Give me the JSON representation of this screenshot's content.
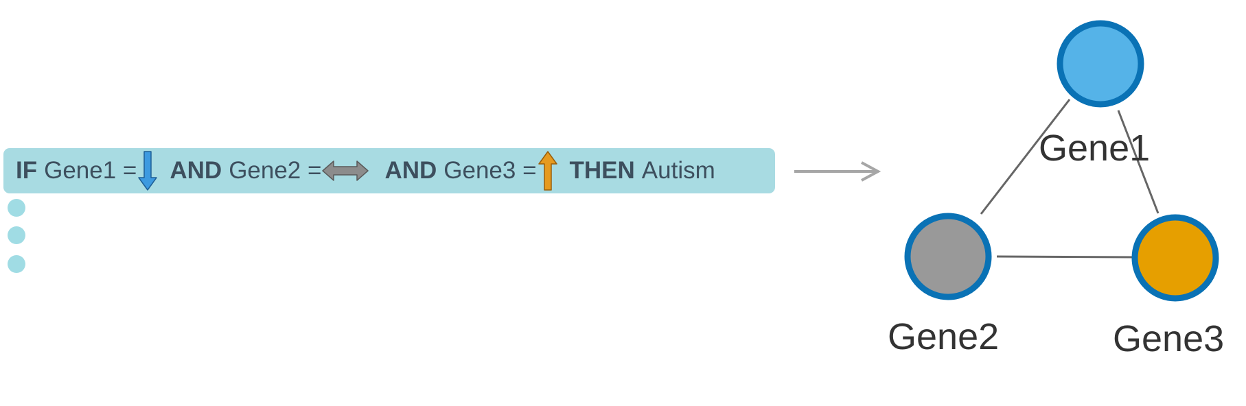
{
  "rule": {
    "if": "IF",
    "gene1": "Gene1 =",
    "and1": "AND",
    "gene2": "Gene2 =",
    "and2": "AND",
    "gene3": "Gene3 =",
    "then": "THEN",
    "outcome": "Autism"
  },
  "icons": {
    "gene1_arrow": "down-arrow-icon",
    "gene2_arrow": "left-right-arrow-icon",
    "gene3_arrow": "up-arrow-icon",
    "flow": "right-arrow-icon"
  },
  "network": {
    "nodes": [
      {
        "id": "gene1",
        "label": "Gene1",
        "fill": "#55b3e8"
      },
      {
        "id": "gene2",
        "label": "Gene2",
        "fill": "#999999"
      },
      {
        "id": "gene3",
        "label": "Gene3",
        "fill": "#e69f00"
      }
    ],
    "edges": [
      {
        "from": "gene1",
        "to": "gene2"
      },
      {
        "from": "gene1",
        "to": "gene3"
      },
      {
        "from": "gene2",
        "to": "gene3"
      }
    ]
  },
  "colors": {
    "rule_bar": "#a8dbe2",
    "rule_text": "#3d4f5e",
    "node_border": "#0a72b5",
    "edge": "#666666",
    "flow_arrow": "#a6a6a6",
    "down_arrow": "#3d9ae0",
    "bidirectional_arrow": "#8c8c8c",
    "up_arrow": "#e69a1f",
    "dots": "#a0dce4"
  }
}
